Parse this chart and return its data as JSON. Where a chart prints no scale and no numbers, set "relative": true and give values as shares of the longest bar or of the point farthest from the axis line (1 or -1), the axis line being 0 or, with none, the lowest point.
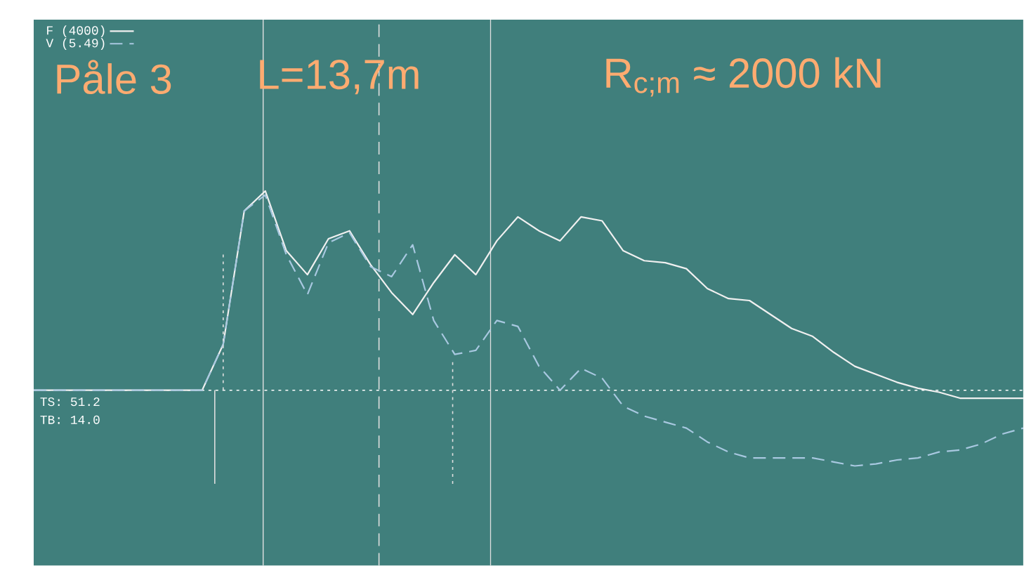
{
  "chart_data": {
    "type": "line",
    "relative": true,
    "title": "Påle 3",
    "subtitle": "L=13,7m",
    "annotations": [
      "R$_{c;m}$ ≈ 2000 kN",
      "TS: 51.2",
      "TB: 14.0"
    ],
    "categories": [
      null,
      null,
      null,
      null,
      null,
      null,
      null,
      null,
      null,
      null,
      null,
      null,
      null,
      null,
      null,
      null,
      null,
      null,
      null,
      null,
      null,
      null,
      null,
      null,
      null,
      null,
      null,
      null,
      null,
      null,
      null,
      null,
      null,
      null,
      null,
      null,
      null,
      null,
      null,
      null,
      null,
      null,
      null,
      null,
      null,
      null,
      null,
      null
    ],
    "series": [
      {
        "name": "F (4000)",
        "color": "#f0f0f0",
        "line_style": "solid",
        "values": [
          0,
          0,
          0,
          0,
          0,
          0,
          0,
          0,
          0,
          0.23,
          0.9,
          1.0,
          0.7,
          0.58,
          0.76,
          0.8,
          0.63,
          0.49,
          0.38,
          0.54,
          0.68,
          0.58,
          0.75,
          0.87,
          0.8,
          0.75,
          0.87,
          0.85,
          0.7,
          0.65,
          0.64,
          0.61,
          0.51,
          0.46,
          0.45,
          0.38,
          0.31,
          0.27,
          0.19,
          0.12,
          0.08,
          0.04,
          0.01,
          -0.01,
          -0.04,
          -0.04,
          -0.04,
          -0.04
        ]
      },
      {
        "name": "V (5.49)",
        "color": "#a8c8e0",
        "line_style": "dashed",
        "values": [
          0,
          0,
          0,
          0,
          0,
          0,
          0,
          0,
          0,
          0.23,
          0.9,
          0.98,
          0.68,
          0.48,
          0.74,
          0.79,
          0.62,
          0.57,
          0.73,
          0.35,
          0.18,
          0.2,
          0.35,
          0.32,
          0.12,
          0.0,
          0.11,
          0.06,
          -0.08,
          -0.13,
          -0.16,
          -0.19,
          -0.26,
          -0.31,
          -0.34,
          -0.34,
          -0.34,
          -0.34,
          -0.36,
          -0.38,
          -0.37,
          -0.35,
          -0.34,
          -0.31,
          -0.3,
          -0.27,
          -0.22,
          -0.19
        ]
      }
    ],
    "ref_lines": [
      {
        "axis": "y",
        "value": 0,
        "color": "#ffffff",
        "line_style": "dotted"
      }
    ],
    "legend": "top left"
  }
}
